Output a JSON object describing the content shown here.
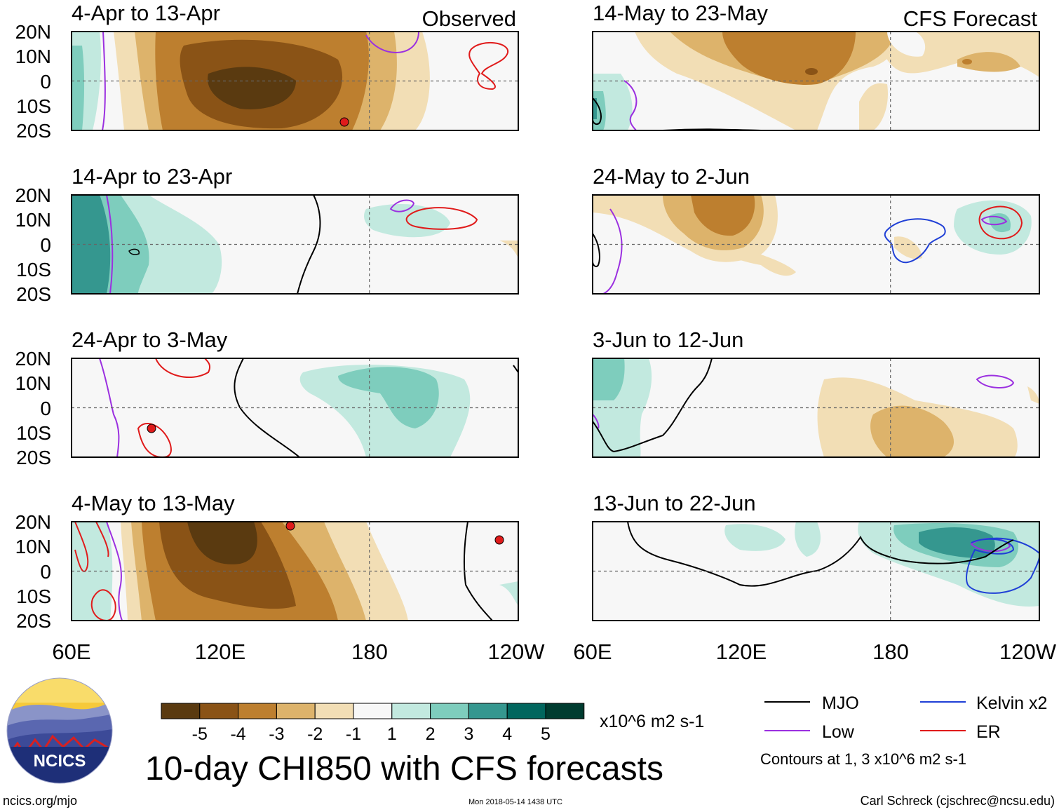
{
  "figure": {
    "title": "10-day CHI850 with CFS forecasts",
    "observed_label": "Observed",
    "forecast_label": "CFS Forecast",
    "lat_ticks": [
      "20N",
      "10N",
      "0",
      "10S",
      "20S"
    ],
    "lon_ticks": [
      "60E",
      "120E",
      "180",
      "120W"
    ]
  },
  "panels": [
    {
      "title": "4-Apr to 13-Apr",
      "kind": "observed"
    },
    {
      "title": "14-Apr to 23-Apr",
      "kind": "observed"
    },
    {
      "title": "24-Apr to 3-May",
      "kind": "observed"
    },
    {
      "title": "4-May to 13-May",
      "kind": "observed"
    },
    {
      "title": "14-May to 23-May",
      "kind": "forecast"
    },
    {
      "title": "24-May to 2-Jun",
      "kind": "forecast"
    },
    {
      "title": "3-Jun to 12-Jun",
      "kind": "forecast"
    },
    {
      "title": "13-Jun to 22-Jun",
      "kind": "forecast"
    }
  ],
  "colorbar": {
    "labels": [
      "-5",
      "-4",
      "-3",
      "-2",
      "-1",
      "1",
      "2",
      "3",
      "4",
      "5"
    ],
    "colors": [
      "#5a3a10",
      "#8a5316",
      "#bd7f2f",
      "#ddb36b",
      "#f2deb5",
      "#f7f7f7",
      "#c2e9df",
      "#7ecdbd",
      "#35978f",
      "#01665e",
      "#003c30"
    ],
    "units": "x10^6 m2 s-1"
  },
  "legend": {
    "items": [
      {
        "label": "MJO",
        "color": "#000000"
      },
      {
        "label": "Kelvin x2",
        "color": "#1f3fd6"
      },
      {
        "label": "Low",
        "color": "#9b30e0"
      },
      {
        "label": "ER",
        "color": "#e01b1b"
      }
    ],
    "contours_note": "Contours at 1, 3 x10^6 m2 s-1"
  },
  "logo": {
    "text": "NCICS"
  },
  "footer": {
    "left": "ncics.org/mjo",
    "center": "Mon 2018-05-14 1438 UTC",
    "right": "Carl Schreck (cjschrec@ncsu.edu)"
  }
}
